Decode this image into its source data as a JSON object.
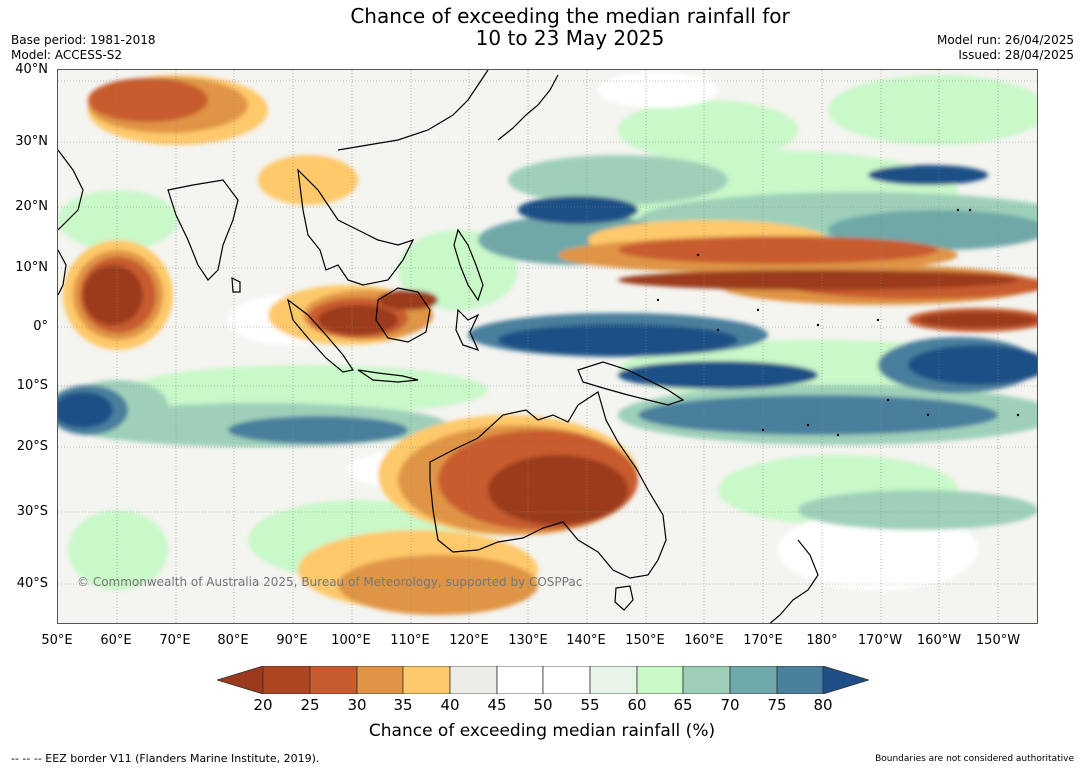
{
  "title": {
    "line1": "Chance of exceeding the median rainfall for",
    "line2": "10 to 23 May 2025"
  },
  "meta_left": {
    "base_period": "Base period: 1981-2018",
    "model": "Model: ACCESS-S2"
  },
  "meta_right": {
    "model_run": "Model run: 26/04/2025",
    "issued": "Issued: 28/04/2025"
  },
  "map": {
    "lat_labels": [
      "40°N",
      "30°N",
      "20°N",
      "10°N",
      "0°",
      "10°S",
      "20°S",
      "30°S",
      "40°S"
    ],
    "lon_labels": [
      "50°E",
      "60°E",
      "70°E",
      "80°E",
      "90°E",
      "100°E",
      "110°E",
      "120°E",
      "130°E",
      "140°E",
      "150°E",
      "160°E",
      "170°E",
      "180°",
      "170°W",
      "160°W",
      "150°W"
    ],
    "copyright": "© Commonwealth of Australia 2025, Bureau of Meteorology, supported by COSPPac"
  },
  "colorbar": {
    "tick_labels": [
      "20",
      "25",
      "30",
      "35",
      "40",
      "45",
      "50",
      "55",
      "60",
      "65",
      "70",
      "75",
      "80"
    ],
    "colors": [
      "#9b3a1e",
      "#ae4622",
      "#c85c2e",
      "#e09445",
      "#fec96a",
      "#eeece6",
      "#ffffff",
      "#ffffff",
      "#e8f4e8",
      "#c9f8c9",
      "#9ed0b9",
      "#6fa8a8",
      "#4a7f9d",
      "#1f4f86"
    ],
    "title": "Chance of exceeding median rainfall (%)"
  },
  "footer": {
    "left": "--  --  -- EEZ border V11 (Flanders Marine Institute, 2019).",
    "right": "Boundaries are not considered authoritative"
  }
}
